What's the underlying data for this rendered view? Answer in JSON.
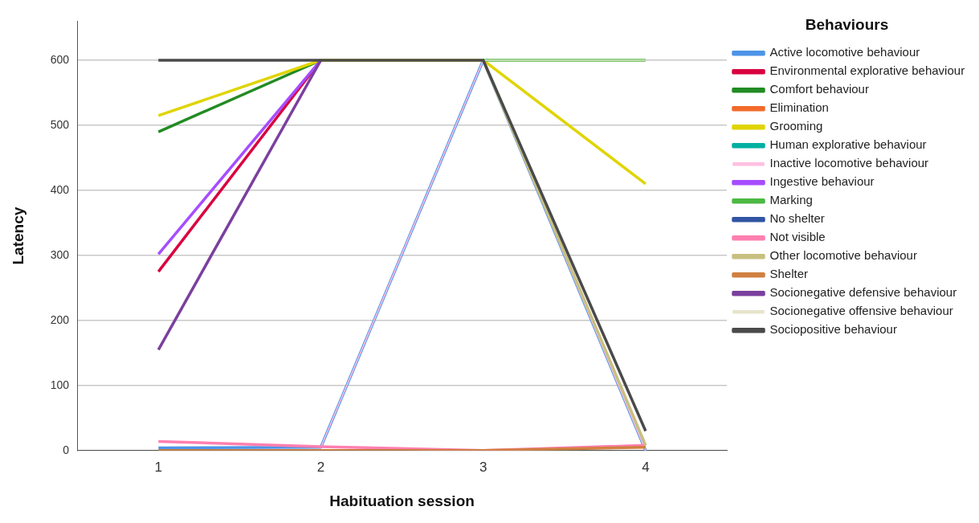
{
  "chart_data": {
    "type": "line",
    "xlabel": "Habituation session",
    "ylabel": "Latency",
    "legend_title": "Behaviours",
    "legend": "right",
    "grid": "y",
    "marker": "none",
    "line_style": "solid",
    "categories": [
      "1",
      "2",
      "3",
      "4"
    ],
    "ylim": [
      0,
      660
    ],
    "yticks": [
      0,
      100,
      200,
      300,
      400,
      500,
      600
    ],
    "series": [
      {
        "name": "Active locomotive behaviour",
        "color": "#4d94e8",
        "values": [
          4,
          5,
          600,
          0
        ]
      },
      {
        "name": "Environmental explorative behaviour",
        "color": "#d9003f",
        "values": [
          275,
          600,
          null,
          null
        ]
      },
      {
        "name": "Comfort behaviour",
        "color": "#228b22",
        "values": [
          490,
          600,
          null,
          null
        ]
      },
      {
        "name": "Elimination",
        "color": "#f26a2b",
        "values": [
          null,
          null,
          null,
          null
        ]
      },
      {
        "name": "Grooming",
        "color": "#e0d400",
        "values": [
          515,
          600,
          600,
          410
        ]
      },
      {
        "name": "Human explorative behaviour",
        "color": "#00b0a0",
        "values": [
          null,
          null,
          null,
          null
        ]
      },
      {
        "name": "Inactive locomotive behaviour",
        "color": "#ffbfe0",
        "values": [
          null,
          5,
          600,
          0
        ]
      },
      {
        "name": "Ingestive behaviour",
        "color": "#a64dff",
        "values": [
          302,
          600,
          null,
          null
        ]
      },
      {
        "name": "Marking",
        "color": "#4cb944",
        "values": [
          null,
          null,
          600,
          600
        ]
      },
      {
        "name": "No shelter",
        "color": "#3255a4",
        "values": [
          null,
          null,
          null,
          null
        ]
      },
      {
        "name": "Not visible",
        "color": "#ff7fb0",
        "values": [
          14,
          6,
          0,
          8
        ]
      },
      {
        "name": "Other locomotive behaviour",
        "color": "#c8c080",
        "values": [
          null,
          null,
          600,
          8
        ]
      },
      {
        "name": "Shelter",
        "color": "#d08040",
        "values": [
          0,
          0,
          0,
          5
        ]
      },
      {
        "name": "Socionegative defensive behaviour",
        "color": "#7b3f9e",
        "values": [
          155,
          600,
          null,
          null
        ]
      },
      {
        "name": "Socionegative offensive behaviour",
        "color": "#e8e4cc",
        "values": [
          null,
          null,
          600,
          600
        ]
      },
      {
        "name": "Sociopositive behaviour",
        "color": "#4a4a4a",
        "values": [
          600,
          600,
          600,
          30
        ]
      }
    ]
  }
}
